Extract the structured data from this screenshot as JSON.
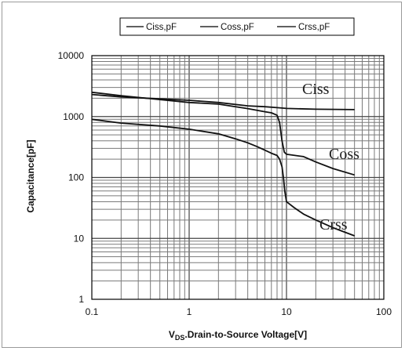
{
  "chart_data": {
    "type": "line",
    "x_scale": "log",
    "y_scale": "log",
    "xlim": [
      0.1,
      100
    ],
    "ylim": [
      1,
      10000
    ],
    "x_ticks": [
      {
        "value": 0.1,
        "label": "0.1"
      },
      {
        "value": 1,
        "label": "1"
      },
      {
        "value": 10,
        "label": "10"
      },
      {
        "value": 100,
        "label": "100"
      }
    ],
    "y_ticks": [
      {
        "value": 1,
        "label": "1"
      },
      {
        "value": 10,
        "label": "10"
      },
      {
        "value": 100,
        "label": "100"
      },
      {
        "value": 1000,
        "label": "1000"
      },
      {
        "value": 10000,
        "label": "10000"
      }
    ],
    "xlabel_prefix": "V",
    "xlabel_subscript": "DS",
    "xlabel_rest": ".Drain-to-Source Voltage[V]",
    "ylabel": "Capacitance[pF]",
    "grid": true,
    "legend_position": "top",
    "series": [
      {
        "name": "Ciss,pF",
        "curve_label": "Ciss",
        "x": [
          0.1,
          0.2,
          0.5,
          1,
          2,
          4,
          6,
          8,
          9,
          10,
          20,
          50
        ],
        "y": [
          2300,
          2100,
          1950,
          1850,
          1700,
          1500,
          1450,
          1400,
          1380,
          1360,
          1320,
          1300
        ]
      },
      {
        "name": "Coss,pF",
        "curve_label": "Coss",
        "x": [
          0.1,
          0.2,
          0.5,
          1,
          2,
          4,
          6,
          7,
          8,
          8.5,
          9,
          9.5,
          10,
          15,
          20,
          30,
          50
        ],
        "y": [
          2500,
          2200,
          1900,
          1700,
          1600,
          1350,
          1200,
          1150,
          1050,
          800,
          400,
          260,
          240,
          220,
          180,
          140,
          110
        ]
      },
      {
        "name": "Crss,pF",
        "curve_label": "Crss",
        "x": [
          0.1,
          0.2,
          0.5,
          1,
          2,
          3,
          4,
          5,
          6,
          7,
          8,
          8.5,
          9,
          9.3,
          9.6,
          10,
          12,
          15,
          20,
          30,
          50
        ],
        "y": [
          900,
          780,
          700,
          620,
          520,
          430,
          370,
          320,
          280,
          250,
          230,
          200,
          150,
          100,
          60,
          40,
          32,
          25,
          20,
          15,
          11
        ]
      }
    ]
  }
}
